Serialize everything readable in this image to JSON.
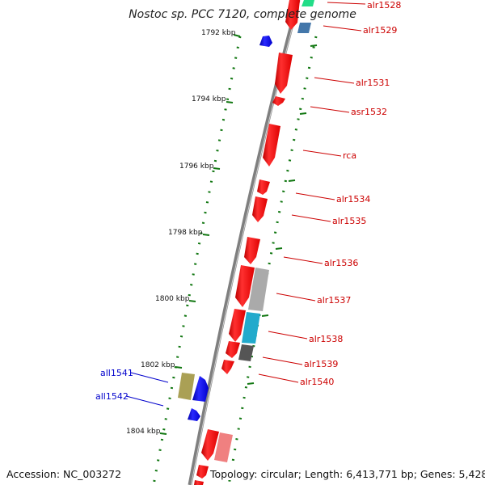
{
  "title": "Nostoc sp. PCC 7120, complete genome",
  "ruler_ticks": [
    {
      "label": "1792 kbp"
    },
    {
      "label": "1794 kbp"
    },
    {
      "label": "1796 kbp"
    },
    {
      "label": "1798 kbp"
    },
    {
      "label": "1800 kbp"
    },
    {
      "label": "1802 kbp"
    },
    {
      "label": "1804 kbp"
    }
  ],
  "genes_forward": [
    {
      "name": "alr1528",
      "color": "#ee0000"
    },
    {
      "name": "alr1529",
      "color": "#ee0000"
    },
    {
      "name": "alr1531",
      "color": "#ee0000"
    },
    {
      "name": "asr1532",
      "color": "#ee0000"
    },
    {
      "name": "rca",
      "color": "#ee0000"
    },
    {
      "name": "alr1534",
      "color": "#ee0000"
    },
    {
      "name": "alr1535",
      "color": "#ee0000"
    },
    {
      "name": "alr1536",
      "color": "#ee0000"
    },
    {
      "name": "alr1537",
      "color": "#ee0000"
    },
    {
      "name": "alr1538",
      "color": "#ee0000"
    },
    {
      "name": "alr1539",
      "color": "#ee0000"
    },
    {
      "name": "alr1540",
      "color": "#ee0000"
    }
  ],
  "genes_reverse": [
    {
      "name": "all1541",
      "color": "#0000ee"
    },
    {
      "name": "all1542",
      "color": "#0000ee"
    }
  ],
  "colors": {
    "forward_gene": "#ee0000",
    "reverse_gene": "#0000ee",
    "backbone": "#7f7f7f",
    "tick_marks": "#117711",
    "feature_light_red": "#f08080",
    "feature_grey": "#aaaaaa",
    "feature_dark_grey": "#555555",
    "feature_cyan": "#22aacc",
    "feature_steel_blue": "#4477aa",
    "feature_green": "#22dd88",
    "feature_olive": "#aaa055"
  },
  "footer": {
    "accession": "Accession: NC_003272",
    "topology": "Topology: circular; Length: 6,413,771 bp; Genes: 5,428"
  }
}
